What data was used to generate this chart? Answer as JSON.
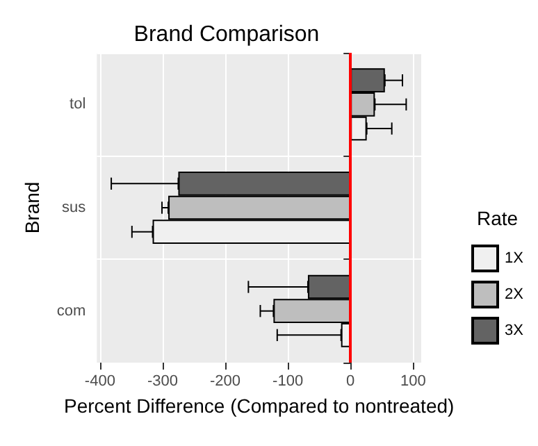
{
  "chart_data": {
    "type": "bar",
    "orientation": "horizontal",
    "title": "Brand Comparison",
    "xlabel": "Percent Difference (Compared to nontreated)",
    "ylabel": "Brand",
    "legend_title": "Rate",
    "categories": [
      "tol",
      "sus",
      "com"
    ],
    "series": [
      {
        "name": "1X",
        "color": "#f0f0f0",
        "values": [
          26,
          -316,
          -15
        ],
        "errors": [
          [
            26,
            66
          ],
          [
            -349,
            -316
          ],
          [
            -117,
            -15
          ]
        ]
      },
      {
        "name": "2X",
        "color": "#bebebe",
        "values": [
          39,
          -291,
          -123
        ],
        "errors": [
          [
            39,
            89
          ],
          [
            -301,
            -291
          ],
          [
            -144,
            -123
          ]
        ]
      },
      {
        "name": "3X",
        "color": "#636363",
        "values": [
          55,
          -275,
          -68
        ],
        "errors": [
          [
            55,
            83
          ],
          [
            -382,
            -275
          ],
          [
            -163,
            -68
          ]
        ]
      }
    ],
    "xlim": [
      -405,
      113
    ],
    "xticks": [
      -400,
      -300,
      -200,
      -100,
      0,
      100
    ],
    "grid": true,
    "legend": "right",
    "ref_lines": [
      {
        "axis": "x",
        "value": 0,
        "color": "#ff0000"
      }
    ]
  }
}
